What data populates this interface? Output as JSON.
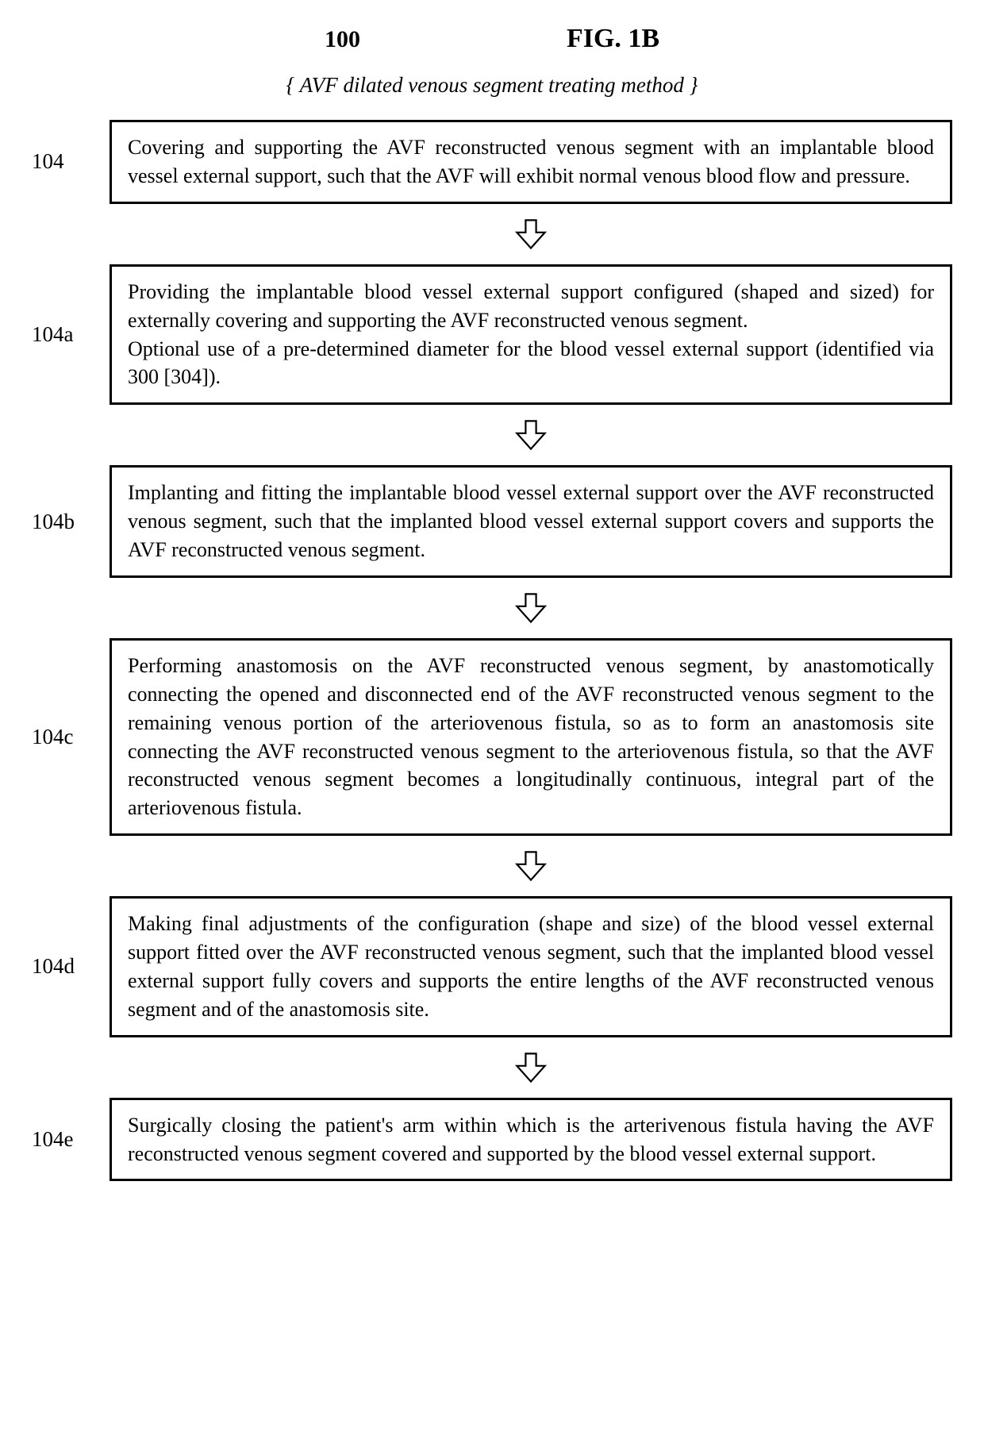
{
  "header": {
    "number": "100",
    "figure": "FIG. 1B"
  },
  "subtitle": "{ AVF dilated venous segment treating method }",
  "steps": [
    {
      "label": "104",
      "text": "Covering and supporting the AVF reconstructed venous segment with an implantable blood vessel external support, such that the AVF will exhibit normal venous blood flow and pressure."
    },
    {
      "label": "104a",
      "text": "Providing the implantable blood vessel external support configured (shaped and sized) for externally covering and supporting the AVF reconstructed venous segment.\nOptional use of a pre-determined diameter for the blood vessel external support (identified via 300 [304])."
    },
    {
      "label": "104b",
      "text": "Implanting and fitting the implantable blood vessel external support over the AVF reconstructed venous segment, such that the implanted blood vessel external support covers and supports the AVF reconstructed venous segment."
    },
    {
      "label": "104c",
      "text": "Performing anastomosis on the AVF reconstructed venous segment, by anastomotically connecting the opened and disconnected end of the AVF reconstructed venous segment to the remaining venous portion of the arteriovenous fistula, so as to form an anastomosis site connecting the AVF reconstructed venous segment to the arteriovenous fistula, so that the AVF reconstructed venous segment becomes a longitudinally continuous, integral part of the arteriovenous fistula."
    },
    {
      "label": "104d",
      "text": "Making final adjustments of the configuration (shape and size) of the blood vessel external support fitted over the AVF reconstructed venous segment, such that the implanted blood vessel external support fully covers and supports the entire lengths of the AVF reconstructed venous segment and of the anastomosis site."
    },
    {
      "label": "104e",
      "text": "Surgically closing the patient's arm within which is the arterivenous fistula having the AVF reconstructed venous segment covered and supported by the blood vessel external support."
    }
  ],
  "style": {
    "box_border_color": "#000000",
    "box_border_width": 3,
    "background_color": "#ffffff",
    "text_color": "#000000",
    "font_family": "Times New Roman",
    "body_fontsize": 26,
    "label_fontsize": 27,
    "header_num_fontsize": 30,
    "header_fig_fontsize": 34,
    "subtitle_fontsize": 27,
    "arrow_stroke": "#000000",
    "arrow_fill": "#ffffff",
    "arrow_stroke_width": 2
  }
}
